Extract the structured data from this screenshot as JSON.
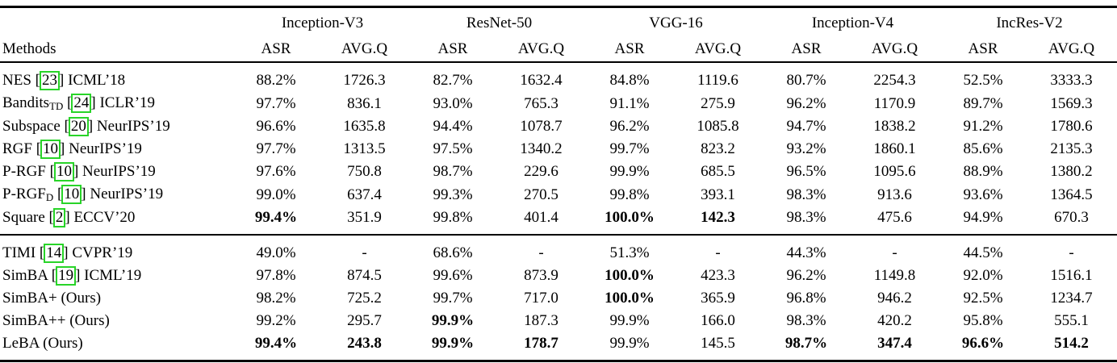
{
  "colors": {
    "citation_box": "#28d428",
    "rule": "#000000",
    "text": "#000000",
    "background": "#ffffff"
  },
  "table": {
    "methods_label": "Methods",
    "groups": [
      {
        "name": "Inception-V3"
      },
      {
        "name": "ResNet-50"
      },
      {
        "name": "VGG-16"
      },
      {
        "name": "Inception-V4"
      },
      {
        "name": "IncRes-V2"
      }
    ],
    "subheaders": [
      "ASR",
      "AVG.Q"
    ],
    "sections": [
      {
        "rows": [
          {
            "method": {
              "name": "NES",
              "subscript": "",
              "citation": "23",
              "suffix": "ICML’18"
            },
            "values": [
              "88.2%",
              "1726.3",
              "82.7%",
              "1632.4",
              "84.8%",
              "1119.6",
              "80.7%",
              "2254.3",
              "52.5%",
              "3333.3"
            ],
            "bold": []
          },
          {
            "method": {
              "name": "Bandits",
              "subscript": "TD",
              "citation": "24",
              "suffix": "ICLR’19"
            },
            "values": [
              "97.7%",
              "836.1",
              "93.0%",
              "765.3",
              "91.1%",
              "275.9",
              "96.2%",
              "1170.9",
              "89.7%",
              "1569.3"
            ],
            "bold": []
          },
          {
            "method": {
              "name": "Subspace",
              "subscript": "",
              "citation": "20",
              "suffix": "NeurIPS’19"
            },
            "values": [
              "96.6%",
              "1635.8",
              "94.4%",
              "1078.7",
              "96.2%",
              "1085.8",
              "94.7%",
              "1838.2",
              "91.2%",
              "1780.6"
            ],
            "bold": []
          },
          {
            "method": {
              "name": "RGF",
              "subscript": "",
              "citation": "10",
              "suffix": "NeurIPS’19"
            },
            "values": [
              "97.7%",
              "1313.5",
              "97.5%",
              "1340.2",
              "99.7%",
              "823.2",
              "93.2%",
              "1860.1",
              "85.6%",
              "2135.3"
            ],
            "bold": []
          },
          {
            "method": {
              "name": "P-RGF",
              "subscript": "",
              "citation": "10",
              "suffix": "NeurIPS’19"
            },
            "values": [
              "97.6%",
              "750.8",
              "98.7%",
              "229.6",
              "99.9%",
              "685.5",
              "96.5%",
              "1095.6",
              "88.9%",
              "1380.2"
            ],
            "bold": []
          },
          {
            "method": {
              "name": "P-RGF",
              "subscript": "D",
              "citation": "10",
              "suffix": "NeurIPS’19"
            },
            "values": [
              "99.0%",
              "637.4",
              "99.3%",
              "270.5",
              "99.8%",
              "393.1",
              "98.3%",
              "913.6",
              "93.6%",
              "1364.5"
            ],
            "bold": []
          },
          {
            "method": {
              "name": "Square",
              "subscript": "",
              "citation": "2",
              "suffix": "ECCV’20"
            },
            "values": [
              "99.4%",
              "351.9",
              "99.8%",
              "401.4",
              "100.0%",
              "142.3",
              "98.3%",
              "475.6",
              "94.9%",
              "670.3"
            ],
            "bold": [
              0,
              4,
              5
            ]
          }
        ]
      },
      {
        "rows": [
          {
            "method": {
              "name": "TIMI",
              "subscript": "",
              "citation": "14",
              "suffix": "CVPR’19"
            },
            "values": [
              "49.0%",
              "-",
              "68.6%",
              "-",
              "51.3%",
              "-",
              "44.3%",
              "-",
              "44.5%",
              "-"
            ],
            "bold": []
          },
          {
            "method": {
              "name": "SimBA",
              "subscript": "",
              "citation": "19",
              "suffix": "ICML’19"
            },
            "values": [
              "97.8%",
              "874.5",
              "99.6%",
              "873.9",
              "100.0%",
              "423.3",
              "96.2%",
              "1149.8",
              "92.0%",
              "1516.1"
            ],
            "bold": [
              4
            ]
          },
          {
            "method": {
              "name": "SimBA+",
              "subscript": "",
              "citation": null,
              "suffix": "(Ours)"
            },
            "values": [
              "98.2%",
              "725.2",
              "99.7%",
              "717.0",
              "100.0%",
              "365.9",
              "96.8%",
              "946.2",
              "92.5%",
              "1234.7"
            ],
            "bold": [
              4
            ]
          },
          {
            "method": {
              "name": "SimBA++",
              "subscript": "",
              "citation": null,
              "suffix": "(Ours)"
            },
            "values": [
              "99.2%",
              "295.7",
              "99.9%",
              "187.3",
              "99.9%",
              "166.0",
              "98.3%",
              "420.2",
              "95.8%",
              "555.1"
            ],
            "bold": [
              2
            ]
          },
          {
            "method": {
              "name": "LeBA",
              "subscript": "",
              "citation": null,
              "suffix": "(Ours)"
            },
            "values": [
              "99.4%",
              "243.8",
              "99.9%",
              "178.7",
              "99.9%",
              "145.5",
              "98.7%",
              "347.4",
              "96.6%",
              "514.2"
            ],
            "bold": [
              0,
              1,
              2,
              3,
              6,
              7,
              8,
              9
            ]
          }
        ]
      }
    ]
  }
}
